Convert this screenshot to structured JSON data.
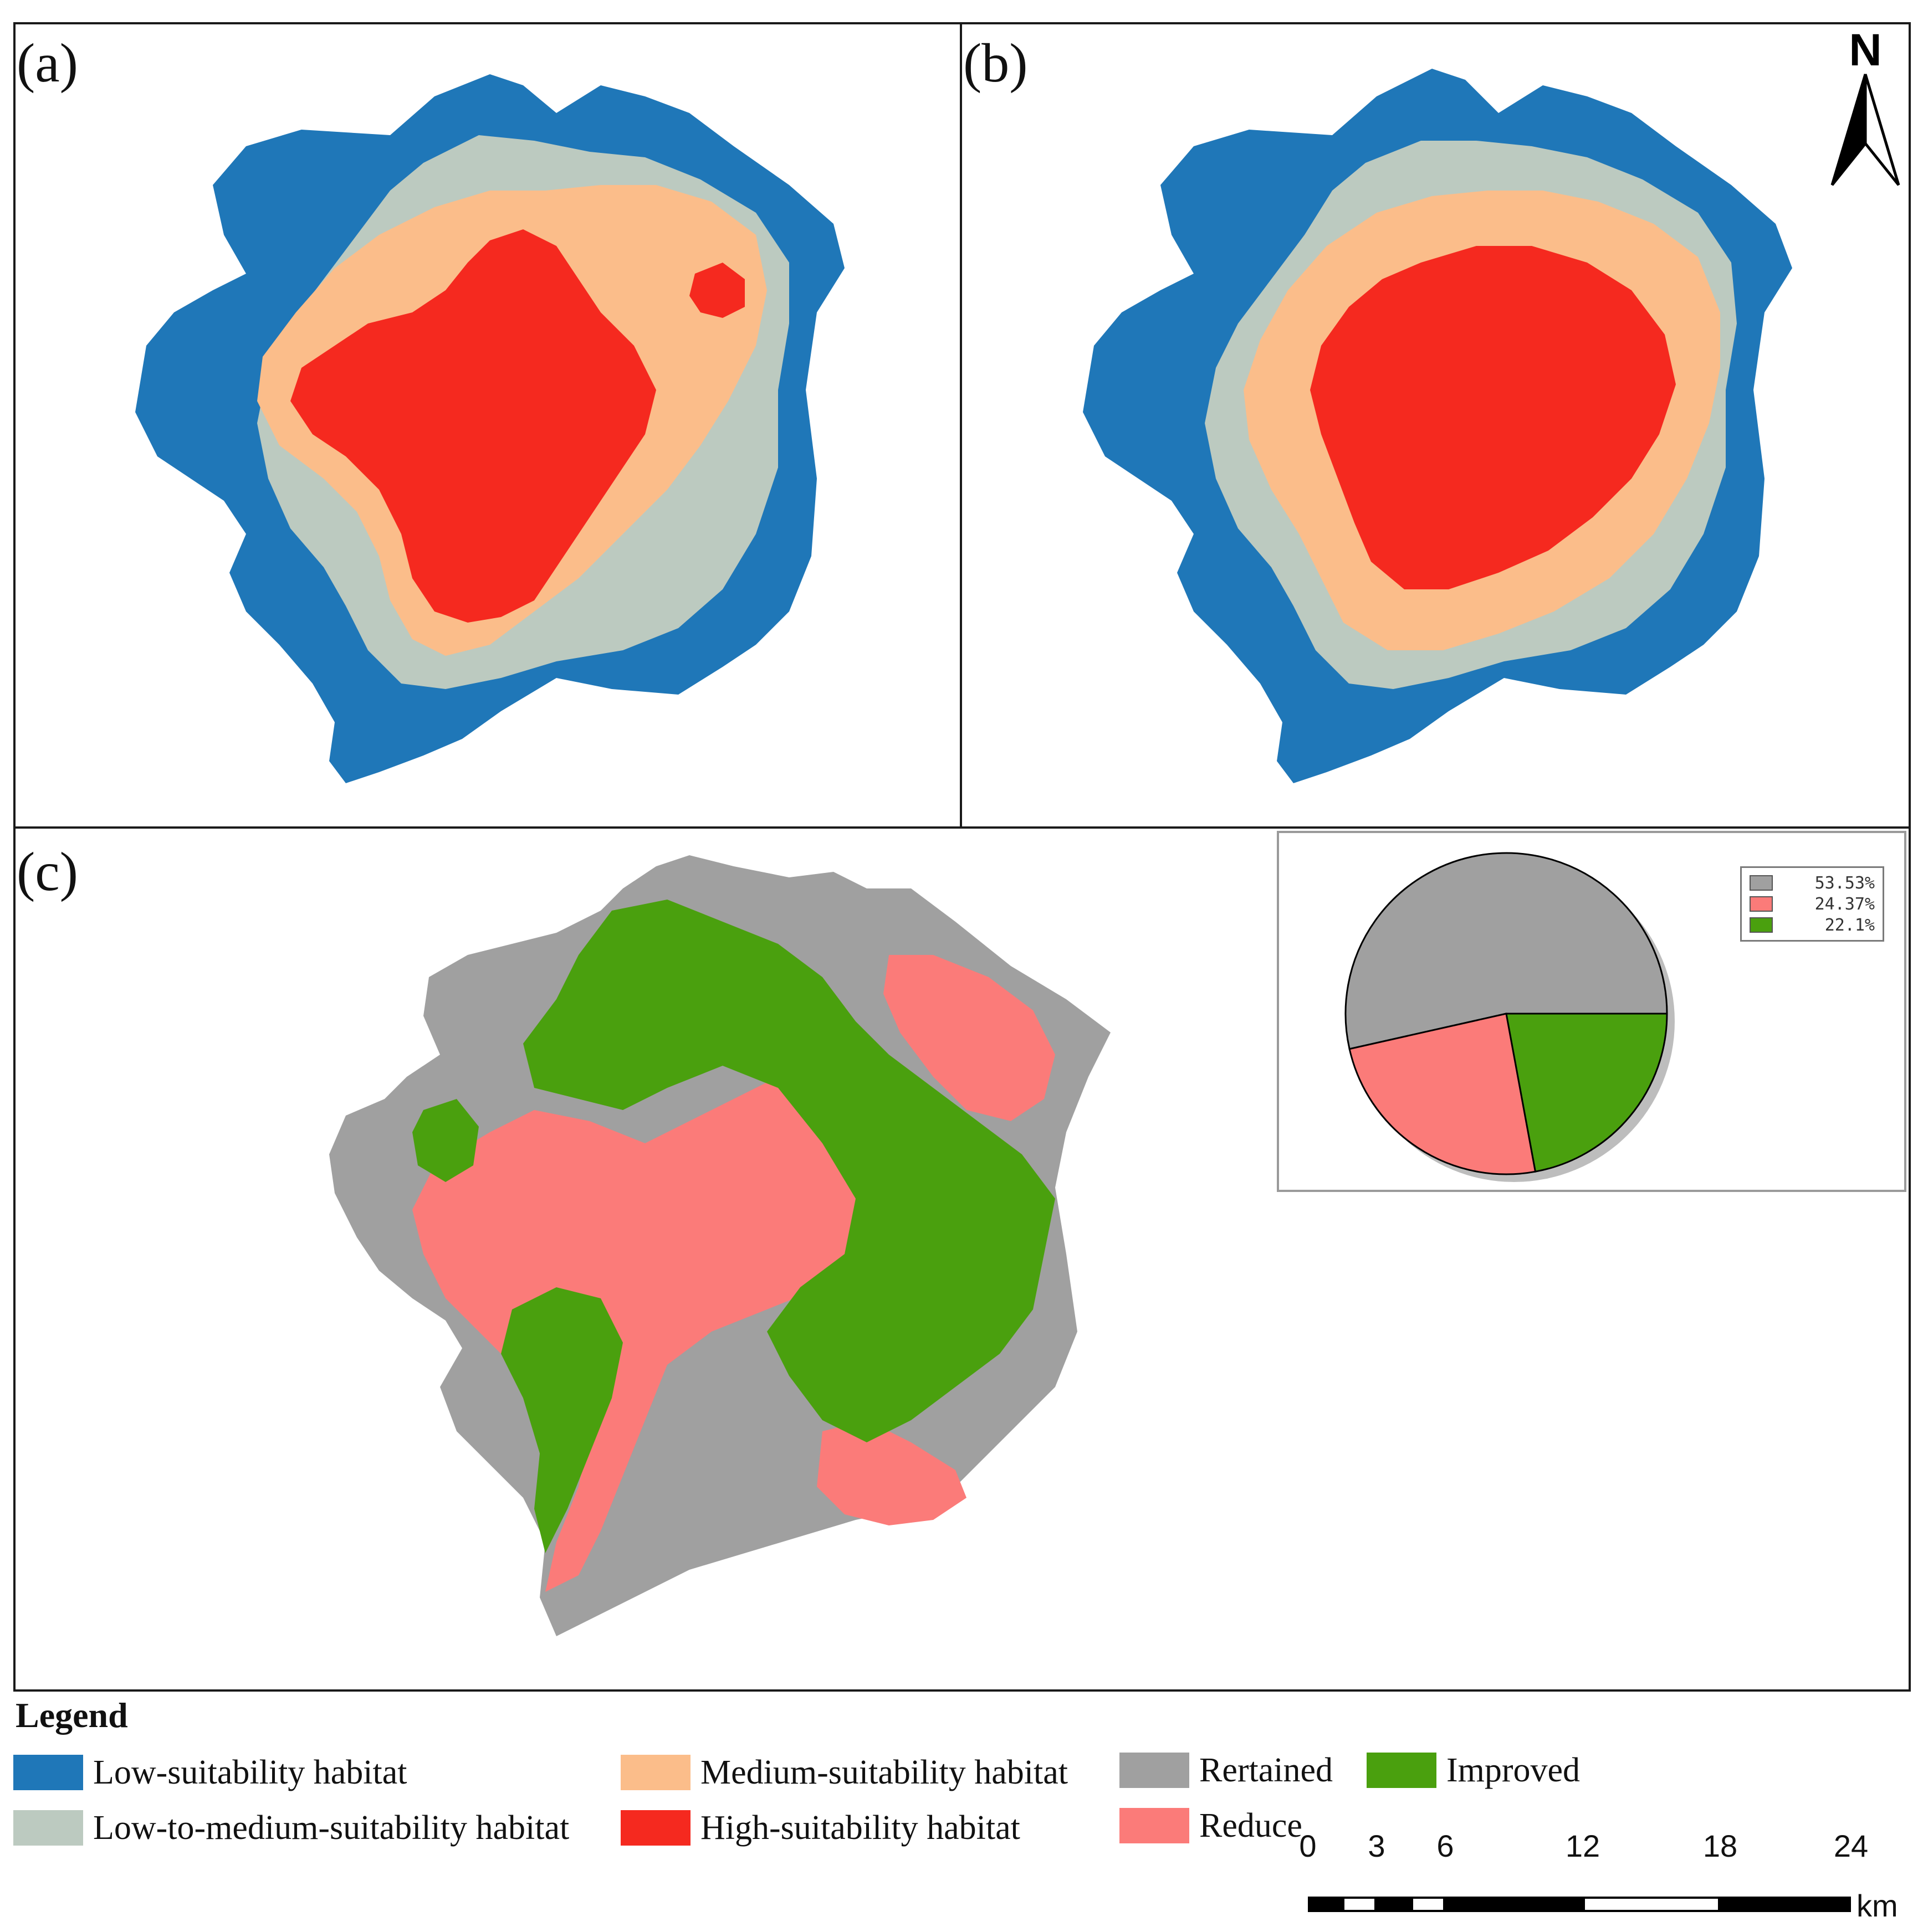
{
  "panels": {
    "a": {
      "label": "(a)"
    },
    "b": {
      "label": "(b)"
    },
    "c": {
      "label": "(c)"
    }
  },
  "north_arrow": {
    "letter": "N"
  },
  "colors": {
    "low": "#1f77b8",
    "low_to_medium": "#bccac0",
    "medium": "#fbbd8a",
    "high": "#f5291f",
    "retained": "#a0a0a0",
    "reduce": "#fb7b79",
    "improved": "#4aa00e"
  },
  "chart_data": {
    "type": "pie",
    "title": "",
    "slices": [
      {
        "name": "Rertained",
        "label": "53.53%",
        "value": 53.53,
        "color": "#a0a0a0"
      },
      {
        "name": "Reduce",
        "label": "24.37%",
        "value": 24.37,
        "color": "#fb7b79"
      },
      {
        "name": "Improved",
        "label": "22.1%",
        "value": 22.1,
        "color": "#4aa00e"
      }
    ]
  },
  "legend": {
    "title": "Legend",
    "items": [
      {
        "label": "Low-suitability habitat",
        "color": "#1f77b8"
      },
      {
        "label": "Low-to-medium-suitability habitat",
        "color": "#bccac0"
      },
      {
        "label": "Medium-suitability habitat",
        "color": "#fbbd8a"
      },
      {
        "label": "High-suitability habitat",
        "color": "#f5291f"
      },
      {
        "label": "Rertained",
        "color": "#a0a0a0"
      },
      {
        "label": "Reduce",
        "color": "#fb7b79"
      },
      {
        "label": "Improved",
        "color": "#4aa00e"
      }
    ]
  },
  "scale_bar": {
    "ticks": [
      "0",
      "3",
      "6",
      "12",
      "18",
      "24"
    ],
    "unit": "km"
  }
}
